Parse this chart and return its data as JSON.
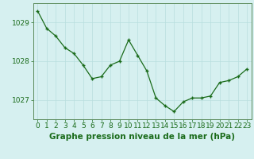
{
  "x": [
    0,
    1,
    2,
    3,
    4,
    5,
    6,
    7,
    8,
    9,
    10,
    11,
    12,
    13,
    14,
    15,
    16,
    17,
    18,
    19,
    20,
    21,
    22,
    23
  ],
  "y": [
    1029.3,
    1028.85,
    1028.65,
    1028.35,
    1028.2,
    1027.9,
    1027.55,
    1027.6,
    1027.9,
    1028.0,
    1028.55,
    1028.15,
    1027.75,
    1027.05,
    1026.85,
    1026.7,
    1026.95,
    1027.05,
    1027.05,
    1027.1,
    1027.45,
    1027.5,
    1027.6,
    1027.8
  ],
  "ylim": [
    1026.5,
    1029.5
  ],
  "yticks": [
    1027,
    1028,
    1029
  ],
  "xticks": [
    0,
    1,
    2,
    3,
    4,
    5,
    6,
    7,
    8,
    9,
    10,
    11,
    12,
    13,
    14,
    15,
    16,
    17,
    18,
    19,
    20,
    21,
    22,
    23
  ],
  "xlabel": "Graphe pression niveau de la mer (hPa)",
  "line_color": "#1a6b1a",
  "marker": "+",
  "bg_color": "#d6f0f0",
  "grid_color": "#b8dede",
  "border_color": "#5a8a5a",
  "tick_label_color": "#1a6b1a",
  "xlabel_color": "#1a6b1a",
  "tick_fontsize": 6.5,
  "xlabel_fontsize": 7.5
}
